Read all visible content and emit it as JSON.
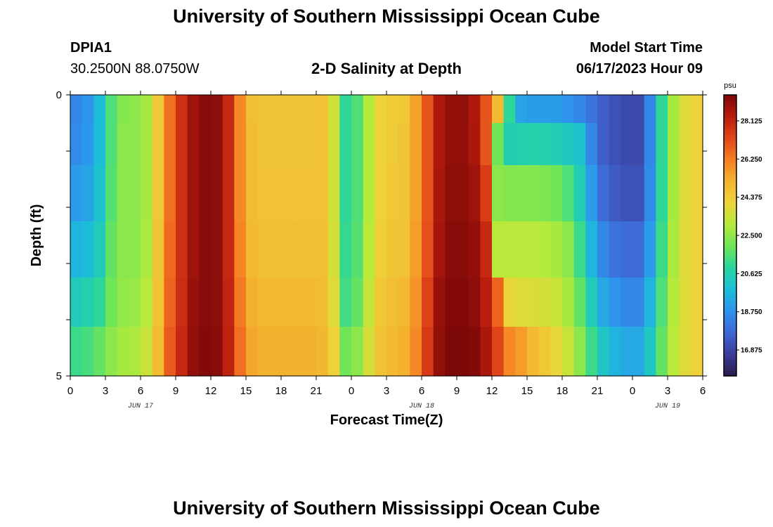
{
  "page": {
    "title": "University of Southern Mississippi Ocean Cube",
    "station": "DPIA1",
    "coordinates": "30.2500N  88.0750W",
    "plot_title": "2-D Salinity at Depth",
    "model_start_label": "Model Start Time",
    "model_start_value": "06/17/2023 Hour 09",
    "footer_title": "University of Southern Mississippi Ocean Cube"
  },
  "colors": {
    "colormap": [
      "#2b1a4a",
      "#3b3c9a",
      "#3f68d4",
      "#2e93ee",
      "#1bbfd8",
      "#28d59d",
      "#6ee559",
      "#b5ea3a",
      "#eed43a",
      "#f3b42f",
      "#f57e22",
      "#e1461a",
      "#b81c0e",
      "#7d0808"
    ]
  },
  "chart_data": {
    "type": "heatmap",
    "title": "2-D Salinity at Depth",
    "xlabel": "Forecast Time(Z)",
    "ylabel": "Depth (ft)",
    "x_tick_labels": [
      "0",
      "3",
      "6",
      "9",
      "12",
      "15",
      "18",
      "21",
      "0",
      "3",
      "6",
      "9",
      "12",
      "15",
      "18",
      "21",
      "0",
      "3",
      "6"
    ],
    "date_labels": [
      {
        "text": "JUN 17",
        "x": 6
      },
      {
        "text": "JUN 18",
        "x": 30
      },
      {
        "text": "JUN 19",
        "x": 51
      }
    ],
    "x_range": [
      0,
      54
    ],
    "depth_range": [
      0,
      5
    ],
    "y_tick_labels": [
      "0",
      "5"
    ],
    "colorbar": {
      "unit": "psu",
      "range": [
        15.6,
        29.4
      ],
      "tick_labels": [
        "28.125",
        "26.250",
        "24.375",
        "22.500",
        "20.625",
        "18.750",
        "16.875"
      ],
      "tick_values": [
        28.125,
        26.25,
        24.375,
        22.5,
        20.625,
        18.75,
        16.875
      ]
    },
    "time_hours": [
      0,
      1,
      2,
      3,
      4,
      5,
      6,
      7,
      8,
      9,
      10,
      11,
      12,
      13,
      14,
      15,
      16,
      17,
      18,
      19,
      20,
      21,
      22,
      23,
      24,
      25,
      26,
      27,
      28,
      29,
      30,
      31,
      32,
      33,
      34,
      35,
      36,
      37,
      38,
      39,
      40,
      41,
      42,
      43,
      44,
      45,
      46,
      47,
      48,
      49,
      50,
      51,
      52,
      53
    ],
    "depth_layers": [
      {
        "depth": 0.25,
        "values": [
          18.5,
          18.8,
          19.8,
          21.5,
          22.3,
          22.4,
          22.8,
          24.5,
          26.5,
          27.8,
          28.8,
          29.2,
          29.1,
          28.0,
          26.0,
          24.8,
          24.6,
          24.6,
          24.6,
          24.6,
          24.6,
          24.7,
          23.5,
          21.0,
          21.5,
          23.0,
          24.2,
          24.4,
          24.5,
          25.5,
          27.0,
          28.5,
          29.0,
          29.0,
          28.5,
          27.0,
          25.0,
          21.0,
          19.2,
          19.0,
          19.0,
          19.0,
          18.8,
          18.5,
          18.0,
          17.5,
          17.2,
          17.0,
          17.0,
          18.5,
          21.0,
          22.8,
          23.8,
          24.2
        ]
      },
      {
        "depth": 0.75,
        "values": [
          18.6,
          18.9,
          19.8,
          21.5,
          22.4,
          22.4,
          22.8,
          24.5,
          26.5,
          27.8,
          28.8,
          29.2,
          29.1,
          28.0,
          26.0,
          24.9,
          24.6,
          24.6,
          24.6,
          24.6,
          24.6,
          24.7,
          23.5,
          21.0,
          21.5,
          23.0,
          24.2,
          24.4,
          24.6,
          25.5,
          27.0,
          28.5,
          29.0,
          29.0,
          28.6,
          27.0,
          22.0,
          20.5,
          20.6,
          20.7,
          20.6,
          20.5,
          20.3,
          20.0,
          18.5,
          17.5,
          17.2,
          17.0,
          17.0,
          18.5,
          21.0,
          22.8,
          23.8,
          24.2
        ]
      },
      {
        "depth": 1.75,
        "values": [
          19.0,
          19.2,
          20.0,
          21.6,
          22.4,
          22.4,
          22.8,
          24.5,
          26.5,
          27.8,
          28.8,
          29.2,
          29.1,
          28.0,
          26.0,
          24.9,
          24.7,
          24.7,
          24.7,
          24.7,
          24.7,
          24.7,
          23.5,
          21.0,
          21.5,
          23.0,
          24.2,
          24.5,
          24.6,
          25.5,
          27.0,
          28.6,
          29.1,
          29.1,
          28.8,
          27.5,
          22.4,
          22.3,
          22.3,
          22.3,
          22.2,
          22.0,
          21.5,
          20.5,
          19.0,
          17.8,
          17.4,
          17.2,
          17.2,
          18.6,
          21.0,
          22.8,
          23.8,
          24.2
        ]
      },
      {
        "depth": 2.75,
        "values": [
          19.6,
          19.8,
          20.4,
          21.8,
          22.4,
          22.4,
          22.9,
          24.6,
          26.6,
          27.8,
          28.8,
          29.2,
          29.1,
          28.0,
          26.1,
          25.0,
          24.8,
          24.8,
          24.8,
          24.8,
          24.8,
          24.8,
          23.6,
          21.1,
          21.6,
          23.1,
          24.3,
          24.6,
          24.7,
          25.6,
          27.1,
          28.7,
          29.2,
          29.2,
          29.0,
          28.0,
          23.1,
          23.1,
          23.1,
          23.1,
          23.0,
          22.8,
          22.4,
          21.2,
          19.6,
          18.5,
          18.0,
          17.8,
          17.8,
          19.0,
          21.2,
          22.9,
          23.8,
          24.2
        ]
      },
      {
        "depth": 3.75,
        "values": [
          20.4,
          20.6,
          21.0,
          22.0,
          22.5,
          22.6,
          23.1,
          24.7,
          26.7,
          27.9,
          28.9,
          29.2,
          29.1,
          28.1,
          26.3,
          25.2,
          25.0,
          25.0,
          25.0,
          25.0,
          25.0,
          24.9,
          23.8,
          21.3,
          21.8,
          23.3,
          24.5,
          24.8,
          25.0,
          25.8,
          27.4,
          28.9,
          29.3,
          29.3,
          29.1,
          28.3,
          26.7,
          24.0,
          23.8,
          23.7,
          23.6,
          23.4,
          22.8,
          21.8,
          20.4,
          19.3,
          18.8,
          18.5,
          18.5,
          19.6,
          21.5,
          23.0,
          23.8,
          24.2
        ]
      },
      {
        "depth": 4.5,
        "values": [
          21.2,
          21.4,
          21.8,
          22.4,
          22.8,
          22.9,
          23.4,
          24.9,
          26.9,
          28.0,
          29.0,
          29.3,
          29.2,
          28.2,
          26.5,
          25.4,
          25.2,
          25.2,
          25.2,
          25.2,
          25.2,
          25.1,
          24.2,
          22.0,
          22.4,
          23.6,
          24.7,
          25.0,
          25.2,
          26.0,
          27.6,
          29.0,
          29.4,
          29.4,
          29.3,
          28.6,
          27.3,
          26.0,
          25.6,
          25.0,
          24.5,
          24.0,
          23.4,
          22.4,
          21.2,
          20.2,
          19.6,
          19.3,
          19.3,
          20.2,
          21.8,
          23.1,
          23.8,
          24.2
        ]
      }
    ]
  }
}
